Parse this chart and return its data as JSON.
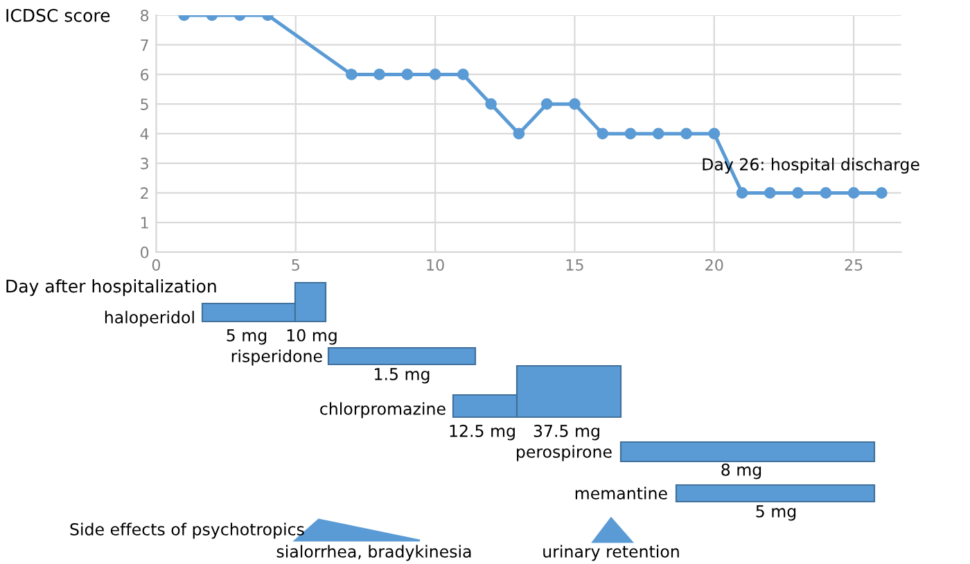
{
  "chart_data": [
    {
      "type": "line",
      "ylabel": "ICDSC score",
      "xlabel": "Day after hospitalization",
      "x": [
        1,
        2,
        3,
        4,
        7,
        8,
        9,
        10,
        11,
        12,
        13,
        14,
        15,
        16,
        17,
        18,
        19,
        20,
        21,
        22,
        23,
        24,
        25,
        26
      ],
      "series": [
        {
          "values": [
            8,
            8,
            8,
            8,
            6,
            6,
            6,
            6,
            6,
            5,
            4,
            5,
            5,
            4,
            4,
            4,
            4,
            4,
            2,
            2,
            2,
            2,
            2,
            2
          ],
          "color": "#5b9bd5"
        }
      ],
      "marker": "circle",
      "line_style": "solid",
      "grid": true,
      "xlim": [
        0,
        26.7
      ],
      "ylim": [
        0,
        8
      ],
      "xticks": [
        0,
        5,
        10,
        15,
        20,
        25
      ],
      "yticks": [
        0,
        1,
        2,
        3,
        4,
        5,
        6,
        7,
        8
      ],
      "annotations": [
        {
          "text": "Day 26: hospital discharge",
          "x": 26,
          "y": 2
        }
      ]
    },
    {
      "type": "other",
      "annotations": [
        "haloperidol",
        "5 mg",
        "10 mg",
        "risperidone",
        "1.5 mg",
        "chlorpromazine",
        "12.5 mg",
        "37.5 mg",
        "perospirone",
        "8 mg",
        "memantine",
        "5 mg",
        "Side effects of psychotropics",
        "sialorrhea, bradykinesia",
        "urinary retention"
      ]
    }
  ]
}
